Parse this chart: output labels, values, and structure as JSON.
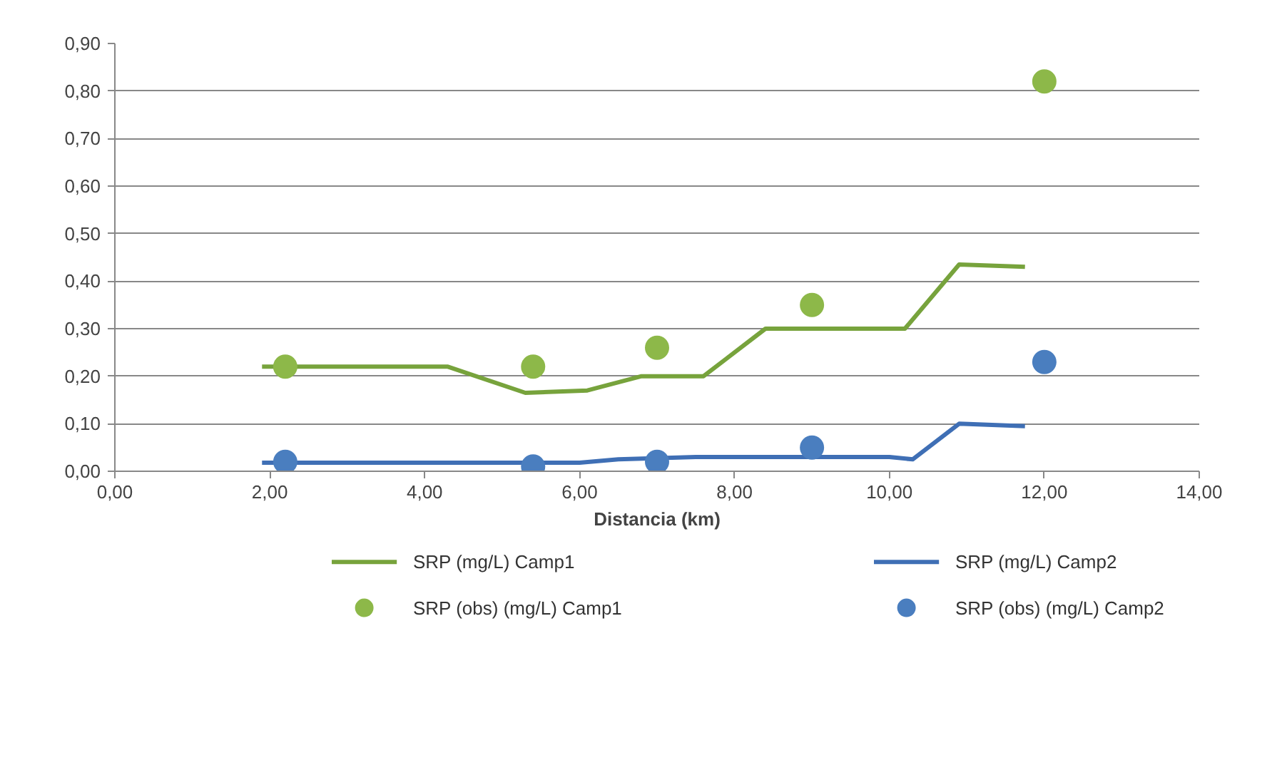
{
  "chart_data": {
    "type": "line",
    "xlabel": "Distancia (km)",
    "xlim": [
      0,
      14
    ],
    "ylim": [
      0,
      0.9
    ],
    "xticks": [
      {
        "value": 0,
        "label": "0,00"
      },
      {
        "value": 2,
        "label": "2,00"
      },
      {
        "value": 4,
        "label": "4,00"
      },
      {
        "value": 6,
        "label": "6,00"
      },
      {
        "value": 8,
        "label": "8,00"
      },
      {
        "value": 10,
        "label": "10,00"
      },
      {
        "value": 12,
        "label": "12,00"
      },
      {
        "value": 14,
        "label": "14,00"
      }
    ],
    "yticks": [
      {
        "value": 0,
        "label": "0,00"
      },
      {
        "value": 0.1,
        "label": "0,10"
      },
      {
        "value": 0.2,
        "label": "0,20"
      },
      {
        "value": 0.3,
        "label": "0,30"
      },
      {
        "value": 0.4,
        "label": "0,40"
      },
      {
        "value": 0.5,
        "label": "0,50"
      },
      {
        "value": 0.6,
        "label": "0,60"
      },
      {
        "value": 0.7,
        "label": "0,70"
      },
      {
        "value": 0.8,
        "label": "0,80"
      },
      {
        "value": 0.9,
        "label": "0,90"
      }
    ],
    "grid": "y",
    "legend": "bottom",
    "series": [
      {
        "name": "SRP (mg/L) Camp1",
        "color": "#77a33c",
        "x": [
          1.9,
          4.3,
          5.3,
          6.1,
          6.8,
          7.6,
          8.4,
          10.0,
          10.2,
          10.9,
          11.75
        ],
        "values": [
          0.22,
          0.22,
          0.165,
          0.17,
          0.2,
          0.2,
          0.3,
          0.3,
          0.3,
          0.435,
          0.43
        ]
      },
      {
        "name": "SRP (mg/L) Camp2",
        "color": "#3f6fb5",
        "x": [
          1.9,
          6.0,
          6.5,
          7.5,
          10.0,
          10.3,
          10.9,
          11.75
        ],
        "values": [
          0.018,
          0.018,
          0.025,
          0.03,
          0.03,
          0.025,
          0.1,
          0.095
        ]
      },
      {
        "name": "SRP (obs) (mg/L) Camp1",
        "type": "scatter",
        "marker": "circle",
        "color": "#8db849",
        "x": [
          2.2,
          5.4,
          7,
          9,
          12
        ],
        "values": [
          0.22,
          0.22,
          0.26,
          0.35,
          0.82
        ]
      },
      {
        "name": "SRP (obs) (mg/L) Camp2",
        "type": "scatter",
        "marker": "circle",
        "color": "#4a7ebf",
        "x": [
          2.2,
          5.4,
          7,
          9,
          12
        ],
        "values": [
          0.02,
          0.01,
          0.02,
          0.05,
          0.23
        ]
      }
    ]
  }
}
